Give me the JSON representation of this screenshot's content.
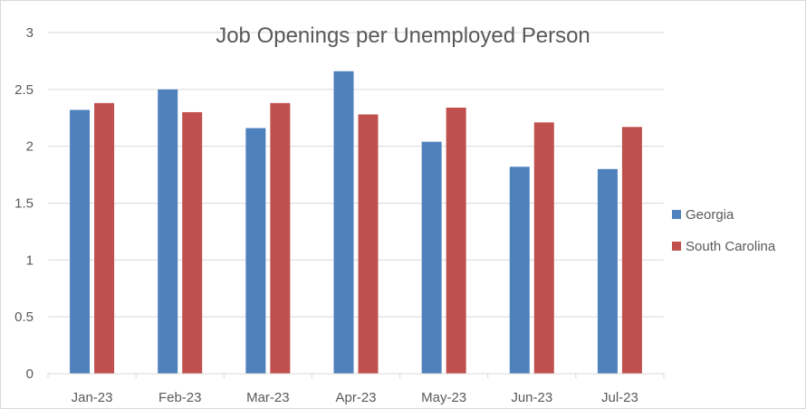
{
  "chart_data": {
    "type": "bar",
    "title": "Job Openings per Unemployed Person",
    "xlabel": "",
    "ylabel": "",
    "categories": [
      "Jan-23",
      "Feb-23",
      "Mar-23",
      "Apr-23",
      "May-23",
      "Jun-23",
      "Jul-23"
    ],
    "series": [
      {
        "name": "Georgia",
        "color": "#4f81bd",
        "values": [
          2.32,
          2.5,
          2.16,
          2.66,
          2.04,
          1.82,
          1.8
        ]
      },
      {
        "name": "South Carolina",
        "color": "#c0504d",
        "values": [
          2.38,
          2.3,
          2.38,
          2.28,
          2.34,
          2.21,
          2.17
        ]
      }
    ],
    "ylim": [
      0,
      3
    ],
    "yticks": [
      "0",
      "0.5",
      "1",
      "1.5",
      "2",
      "2.5",
      "3"
    ],
    "grid": true,
    "legend_position": "right"
  }
}
